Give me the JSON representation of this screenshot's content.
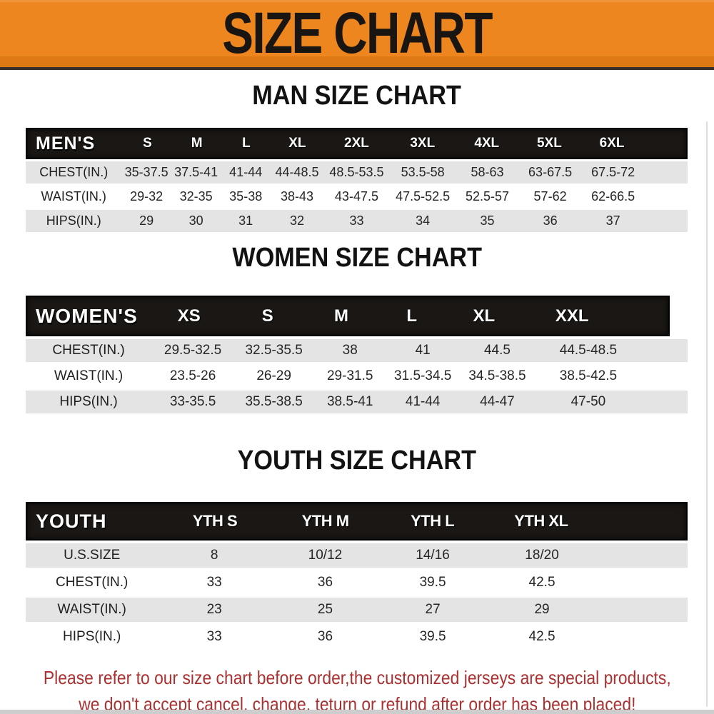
{
  "banner": {
    "title": "SIZE CHART"
  },
  "sections": [
    {
      "id": "men",
      "title": "MAN SIZE CHART",
      "header_label": "MEN'S",
      "columns": [
        "S",
        "M",
        "L",
        "XL",
        "2XL",
        "3XL",
        "4XL",
        "5XL",
        "6XL"
      ],
      "rows": [
        {
          "label": "CHEST(IN.)",
          "values": [
            "35-37.5",
            "37.5-41",
            "41-44",
            "44-48.5",
            "48.5-53.5",
            "53.5-58",
            "58-63",
            "63-67.5",
            "67.5-72"
          ]
        },
        {
          "label": "WAIST(IN.)",
          "values": [
            "29-32",
            "32-35",
            "35-38",
            "38-43",
            "43-47.5",
            "47.5-52.5",
            "52.5-57",
            "57-62",
            "62-66.5"
          ]
        },
        {
          "label": "HIPS(IN.)",
          "values": [
            "29",
            "30",
            "31",
            "32",
            "33",
            "34",
            "35",
            "36",
            "37"
          ]
        }
      ]
    },
    {
      "id": "women",
      "title": "WOMEN SIZE CHART",
      "header_label": "WOMEN'S",
      "columns": [
        "XS",
        "S",
        "M",
        "L",
        "XL",
        "XXL"
      ],
      "rows": [
        {
          "label": "CHEST(IN.)",
          "values": [
            "29.5-32.5",
            "32.5-35.5",
            "38",
            "41",
            "44.5",
            "44.5-48.5"
          ]
        },
        {
          "label": "WAIST(IN.)",
          "values": [
            "23.5-26",
            "26-29",
            "29-31.5",
            "31.5-34.5",
            "34.5-38.5",
            "38.5-42.5"
          ]
        },
        {
          "label": "HIPS(IN.)",
          "values": [
            "33-35.5",
            "35.5-38.5",
            "38.5-41",
            "41-44",
            "44-47",
            "47-50"
          ]
        }
      ]
    },
    {
      "id": "youth",
      "title": "YOUTH SIZE CHART",
      "header_label": "YOUTH",
      "columns": [
        "YTH S",
        "YTH M",
        "YTH L",
        "YTH XL"
      ],
      "rows": [
        {
          "label": "U.S.SIZE",
          "values": [
            "8",
            "10/12",
            "14/16",
            "18/20"
          ]
        },
        {
          "label": "CHEST(IN.)",
          "values": [
            "33",
            "36",
            "39.5",
            "42.5"
          ]
        },
        {
          "label": "WAIST(IN.)",
          "values": [
            "23",
            "25",
            "27",
            "29"
          ]
        },
        {
          "label": "HIPS(IN.)",
          "values": [
            "33",
            "36",
            "39.5",
            "42.5"
          ]
        }
      ]
    }
  ],
  "footer": {
    "line1": "Please refer to our size chart before order,the customized jerseys are special products,",
    "line2": "we don't accept cancel, change, teturn or refund after order has been placed!"
  },
  "colors": {
    "banner_bg": "#ED861F",
    "header_bar": "#1A1714",
    "row_alt": "#E4E4E5",
    "disclaimer": "#A93131"
  }
}
